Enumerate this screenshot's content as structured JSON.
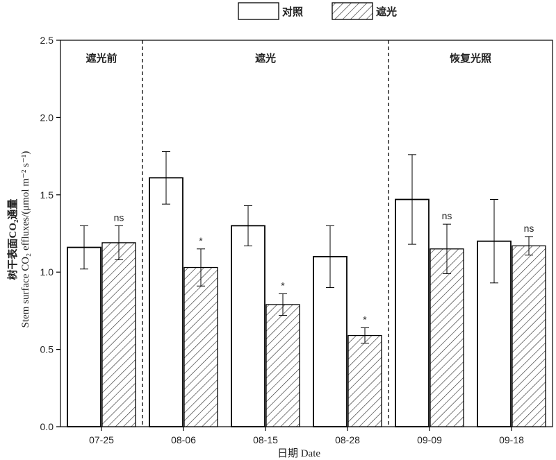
{
  "chart_data": {
    "type": "bar",
    "xlabel": "日期 Date",
    "ylabel_cn": "树干表面CO₂通量",
    "ylabel_en": "Stem surface CO₂ effluxes/(μmol m⁻² s⁻¹)",
    "ylim": [
      0.0,
      2.5
    ],
    "yticks": [
      "0.0",
      "0.5",
      "1.0",
      "1.5",
      "2.0",
      "2.5"
    ],
    "categories": [
      "07-25",
      "08-06",
      "08-15",
      "08-28",
      "09-09",
      "09-18"
    ],
    "series": [
      {
        "name": "对照",
        "fill": "plain",
        "values": [
          1.16,
          1.61,
          1.3,
          1.1,
          1.47,
          1.2
        ],
        "error": [
          0.14,
          0.17,
          0.13,
          0.2,
          0.29,
          0.27
        ]
      },
      {
        "name": "遮光",
        "fill": "hatched",
        "values": [
          1.19,
          1.03,
          0.79,
          0.59,
          1.15,
          1.17
        ],
        "error": [
          0.11,
          0.12,
          0.07,
          0.05,
          0.16,
          0.06
        ]
      }
    ],
    "significance": [
      "ns",
      "*",
      "*",
      "*",
      "ns",
      "ns"
    ],
    "periods": [
      {
        "label": "遮光前",
        "categories": [
          "07-25"
        ]
      },
      {
        "label": "遮光",
        "categories": [
          "08-06",
          "08-15",
          "08-28"
        ]
      },
      {
        "label": "恢复光照",
        "categories": [
          "09-09",
          "09-18"
        ]
      }
    ],
    "grid": false,
    "legend": "top-center"
  },
  "colors": {
    "bar_fill": "#ffffff",
    "stroke": "#000000",
    "hatch": "#333333"
  }
}
